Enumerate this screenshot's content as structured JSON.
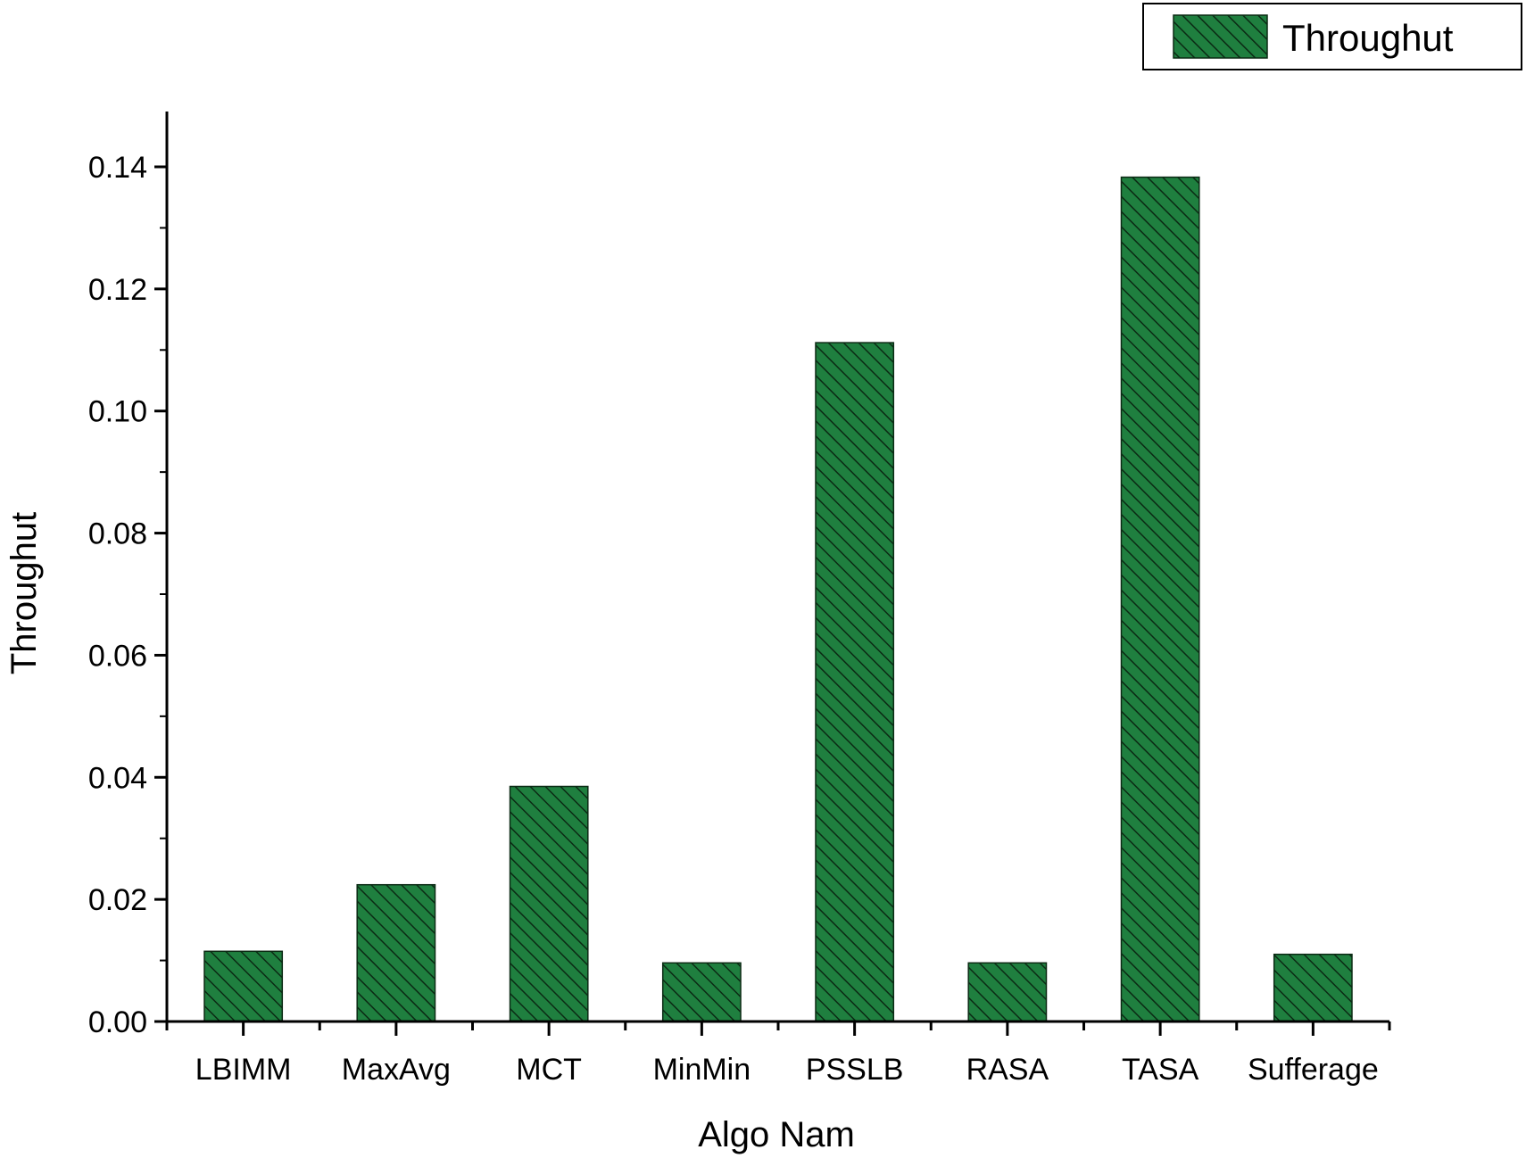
{
  "chart_data": {
    "type": "bar",
    "xlabel": "Algo Nam",
    "ylabel": "Throughut",
    "categories": [
      "LBIMM",
      "MaxAvg",
      "MCT",
      "MinMin",
      "PSSLB",
      "RASA",
      "TASA",
      "Sufferage"
    ],
    "series": [
      {
        "name": "Throughut",
        "values": [
          0.0115,
          0.0224,
          0.0385,
          0.0096,
          0.1112,
          0.0096,
          0.1383,
          0.011
        ]
      }
    ],
    "ylim": [
      0,
      0.15
    ],
    "yticks": [
      "0.00",
      "0.02",
      "0.04",
      "0.06",
      "0.08",
      "0.10",
      "0.12",
      "0.14"
    ],
    "legend_position": "top-right",
    "grid": false,
    "colors": {
      "bar_fill": "#1f7f3f",
      "hatch": "#0b2a14",
      "axis": "#000000"
    }
  }
}
